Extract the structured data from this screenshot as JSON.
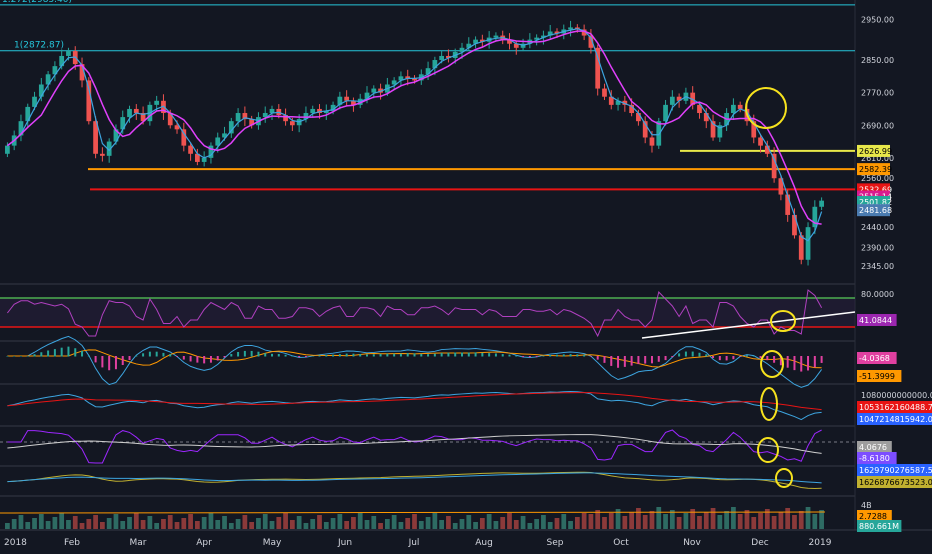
{
  "chart_data": {
    "type": "line",
    "price": {
      "top_level_label": "1.272(2985.40)",
      "fib_label": "1(2872.87)",
      "y_ticks": [
        2950.0,
        2850.0,
        2770.0,
        2690.0,
        2610.0,
        2560.0,
        2440.0,
        2390.0,
        2345.0
      ],
      "ylim": [
        2330,
        2985
      ],
      "levels": [
        {
          "name": "fib-1.272",
          "value": 2985.4,
          "color": "#26c6da"
        },
        {
          "name": "fib-1",
          "value": 2872.87,
          "color": "#26c6da"
        },
        {
          "name": "yellow-line",
          "value": 2626.99,
          "color": "#e8e84a"
        },
        {
          "name": "orange-line",
          "value": 2582.39,
          "color": "#ff9800"
        },
        {
          "name": "red-line",
          "value": 2532.69,
          "color": "#e81414"
        }
      ],
      "right_labels": [
        {
          "text": "2626.99",
          "value": 2626.99,
          "bg": "#e8e84a",
          "fg": "#000000"
        },
        {
          "text": "2582.39",
          "value": 2582.39,
          "bg": "#ff9800",
          "fg": "#000000"
        },
        {
          "text": "2532.69",
          "value": 2532.69,
          "bg": "#e81414",
          "fg": "#ffffff"
        },
        {
          "text": "2515.14",
          "value": 2515.14,
          "bg": "#d81b8f",
          "fg": "#ffffff"
        },
        {
          "text": "2501.82",
          "value": 2501.82,
          "bg": "#26a69a",
          "fg": "#ffffff"
        },
        {
          "text": "2481.68",
          "value": 2481.68,
          "bg": "#4a7bb0",
          "fg": "#ffffff"
        }
      ],
      "closes": [
        2640,
        2665,
        2700,
        2735,
        2760,
        2790,
        2815,
        2835,
        2860,
        2872,
        2840,
        2800,
        2700,
        2620,
        2615,
        2650,
        2680,
        2710,
        2730,
        2720,
        2700,
        2740,
        2750,
        2720,
        2690,
        2680,
        2640,
        2620,
        2600,
        2610,
        2640,
        2660,
        2670,
        2700,
        2720,
        2705,
        2690,
        2710,
        2720,
        2730,
        2715,
        2700,
        2690,
        2705,
        2720,
        2730,
        2720,
        2725,
        2740,
        2760,
        2750,
        2740,
        2755,
        2770,
        2780,
        2770,
        2790,
        2800,
        2810,
        2805,
        2800,
        2815,
        2830,
        2850,
        2860,
        2855,
        2870,
        2880,
        2890,
        2900,
        2895,
        2905,
        2910,
        2900,
        2890,
        2880,
        2890,
        2900,
        2905,
        2910,
        2920,
        2915,
        2925,
        2930,
        2925,
        2910,
        2880,
        2780,
        2760,
        2740,
        2750,
        2740,
        2720,
        2700,
        2660,
        2640,
        2700,
        2740,
        2760,
        2750,
        2770,
        2740,
        2720,
        2700,
        2660,
        2690,
        2720,
        2740,
        2730,
        2700,
        2660,
        2640,
        2620,
        2560,
        2520,
        2470,
        2420,
        2360,
        2440,
        2490,
        2505
      ]
    },
    "indicators": [
      {
        "name": "RSI",
        "labels": [
          {
            "text": "80.0000",
            "plain": true
          },
          {
            "text": "41.0844",
            "bg": "#9c27b0",
            "fg": "#ffffff"
          }
        ]
      },
      {
        "name": "MACD",
        "labels": [
          {
            "text": "-4.0368",
            "bg": "#e040a0",
            "fg": "#ffffff"
          },
          {
            "text": "-51.3999",
            "bg": "#ff9800",
            "fg": "#000000"
          }
        ]
      },
      {
        "name": "OBV",
        "labels": [
          {
            "text": "1080000000000.0000",
            "plain": true
          },
          {
            "text": "1053162160488.7364",
            "bg": "#e81414",
            "fg": "#ffffff"
          },
          {
            "text": "1047214815942.0000",
            "bg": "#2962ff",
            "fg": "#ffffff"
          }
        ]
      },
      {
        "name": "Oscillator",
        "labels": [
          {
            "text": "4.0676",
            "bg": "#9e9e9e",
            "fg": "#ffffff"
          },
          {
            "text": "-8.6180",
            "bg": "#7c4dff",
            "fg": "#ffffff"
          }
        ]
      },
      {
        "name": "AD",
        "labels": [
          {
            "text": "1629790276587.5606",
            "bg": "#2962ff",
            "fg": "#ffffff"
          },
          {
            "text": "1626876673523.0740",
            "bg": "#c0b030",
            "fg": "#000000"
          }
        ]
      },
      {
        "name": "Volume",
        "labels": [
          {
            "text": "4B",
            "plain": true
          },
          {
            "text": "2.7288",
            "bg": "#ff9800",
            "fg": "#000000"
          },
          {
            "text": "880.661M",
            "bg": "#26a69a",
            "fg": "#ffffff"
          }
        ]
      }
    ],
    "x_ticks": [
      "2018",
      "Feb",
      "Mar",
      "Apr",
      "May",
      "Jun",
      "Jul",
      "Aug",
      "Sep",
      "Oct",
      "Nov",
      "Dec",
      "2019"
    ],
    "colors": {
      "background": "#131722",
      "up": "#26a69a",
      "down": "#ef5350",
      "ma": "#e040fb",
      "ema": "#3da5e0",
      "grid": "#2a2e39",
      "axis_text": "#d1d4dc",
      "highlight": "#f6e21e"
    }
  }
}
